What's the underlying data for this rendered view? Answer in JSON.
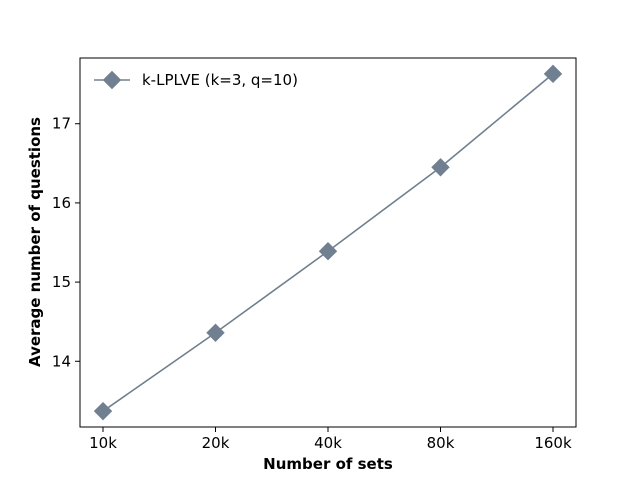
{
  "chart_data": {
    "type": "line",
    "title": "",
    "xlabel": "Number of sets",
    "ylabel": "Average number of questions",
    "categories": [
      "10k",
      "20k",
      "40k",
      "80k",
      "160k"
    ],
    "series": [
      {
        "name": "k-LPLVE (k=3, q=10)",
        "values": [
          13.37,
          14.36,
          15.39,
          16.45,
          17.63
        ],
        "color": "#708090",
        "marker": "diamond"
      }
    ],
    "yticks": [
      14,
      15,
      16,
      17
    ],
    "ylim": [
      13.17,
      17.83
    ],
    "grid": false,
    "legend_position": "upper-left"
  }
}
